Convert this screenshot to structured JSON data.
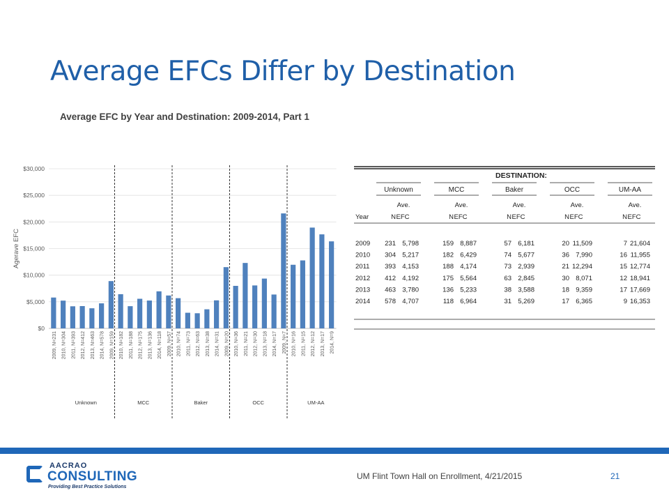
{
  "slide": {
    "title": "Average EFCs Differ by Destination",
    "footer": "UM Flint Town Hall on Enrollment, 4/21/2015",
    "page_number": "21"
  },
  "logo": {
    "top_text": "AACRAO",
    "main_text": "CONSULTING",
    "tagline": "Providing Best Practice Solutions"
  },
  "colors": {
    "title": "#1f5fa8",
    "bar": "#4f81bd",
    "footer_bar": "#1f67b8"
  },
  "chart_data": [
    {
      "type": "bar",
      "title": "Average EFC by Year and Destination: 2009-2014, Part 1",
      "ylabel": "Agerave EFC",
      "ylim": [
        0,
        30000
      ],
      "yticks": [
        "$0",
        "$5,000",
        "$10,000",
        "$15,000",
        "$20,000",
        "$25,000",
        "$30,000"
      ],
      "groups": [
        {
          "name": "Unknown",
          "categories": [
            "2009, N=231",
            "2010, N=304",
            "2011, N=393",
            "2012, N=412",
            "2013, N=463",
            "2014, N=578"
          ],
          "values": [
            5798,
            5217,
            4153,
            4192,
            3780,
            4707
          ]
        },
        {
          "name": "MCC",
          "categories": [
            "2009, N=159",
            "2010, N=182",
            "2011, N=188",
            "2012, N=175",
            "2013, N=136",
            "2014, N=118"
          ],
          "values": [
            8887,
            6429,
            4174,
            5564,
            5233,
            6964
          ]
        },
        {
          "name": "Baker",
          "categories": [
            "2009, N=57",
            "2010, N=74",
            "2011, N=73",
            "2012, N=63",
            "2013, N=38",
            "2014, N=31"
          ],
          "values": [
            6181,
            5677,
            2939,
            2845,
            3588,
            5269
          ]
        },
        {
          "name": "OCC",
          "categories": [
            "2009, N=20",
            "2010, N=36",
            "2011, N=21",
            "2012, N=30",
            "2013, N=18",
            "2014, N=17"
          ],
          "values": [
            11509,
            7990,
            12294,
            8071,
            9359,
            6365
          ]
        },
        {
          "name": "UM-AA",
          "categories": [
            "2009, N=7",
            "2010, N=16",
            "2011, N=15",
            "2012, N=12",
            "2013, N=17",
            "2014, N=9"
          ],
          "values": [
            21604,
            11955,
            12774,
            18941,
            17669,
            16353
          ]
        }
      ]
    },
    {
      "type": "table",
      "header": "DESTINATION:",
      "destinations": [
        "Unknown",
        "MCC",
        "Baker",
        "OCC",
        "UM-AA"
      ],
      "col_year": "Year",
      "col_n": "N",
      "col_ave_top": "Ave.",
      "col_ave_bottom": "EFC",
      "rows": [
        {
          "year": "2009",
          "cells": [
            [
              "231",
              "5,798"
            ],
            [
              "159",
              "8,887"
            ],
            [
              "57",
              "6,181"
            ],
            [
              "20",
              "11,509"
            ],
            [
              "7",
              "21,604"
            ]
          ]
        },
        {
          "year": "2010",
          "cells": [
            [
              "304",
              "5,217"
            ],
            [
              "182",
              "6,429"
            ],
            [
              "74",
              "5,677"
            ],
            [
              "36",
              "7,990"
            ],
            [
              "16",
              "11,955"
            ]
          ]
        },
        {
          "year": "2011",
          "cells": [
            [
              "393",
              "4,153"
            ],
            [
              "188",
              "4,174"
            ],
            [
              "73",
              "2,939"
            ],
            [
              "21",
              "12,294"
            ],
            [
              "15",
              "12,774"
            ]
          ]
        },
        {
          "year": "2012",
          "cells": [
            [
              "412",
              "4,192"
            ],
            [
              "175",
              "5,564"
            ],
            [
              "63",
              "2,845"
            ],
            [
              "30",
              "8,071"
            ],
            [
              "12",
              "18,941"
            ]
          ]
        },
        {
          "year": "2013",
          "cells": [
            [
              "463",
              "3,780"
            ],
            [
              "136",
              "5,233"
            ],
            [
              "38",
              "3,588"
            ],
            [
              "18",
              "9,359"
            ],
            [
              "17",
              "17,669"
            ]
          ]
        },
        {
          "year": "2014",
          "cells": [
            [
              "578",
              "4,707"
            ],
            [
              "118",
              "6,964"
            ],
            [
              "31",
              "5,269"
            ],
            [
              "17",
              "6,365"
            ],
            [
              "9",
              "16,353"
            ]
          ]
        }
      ]
    }
  ]
}
